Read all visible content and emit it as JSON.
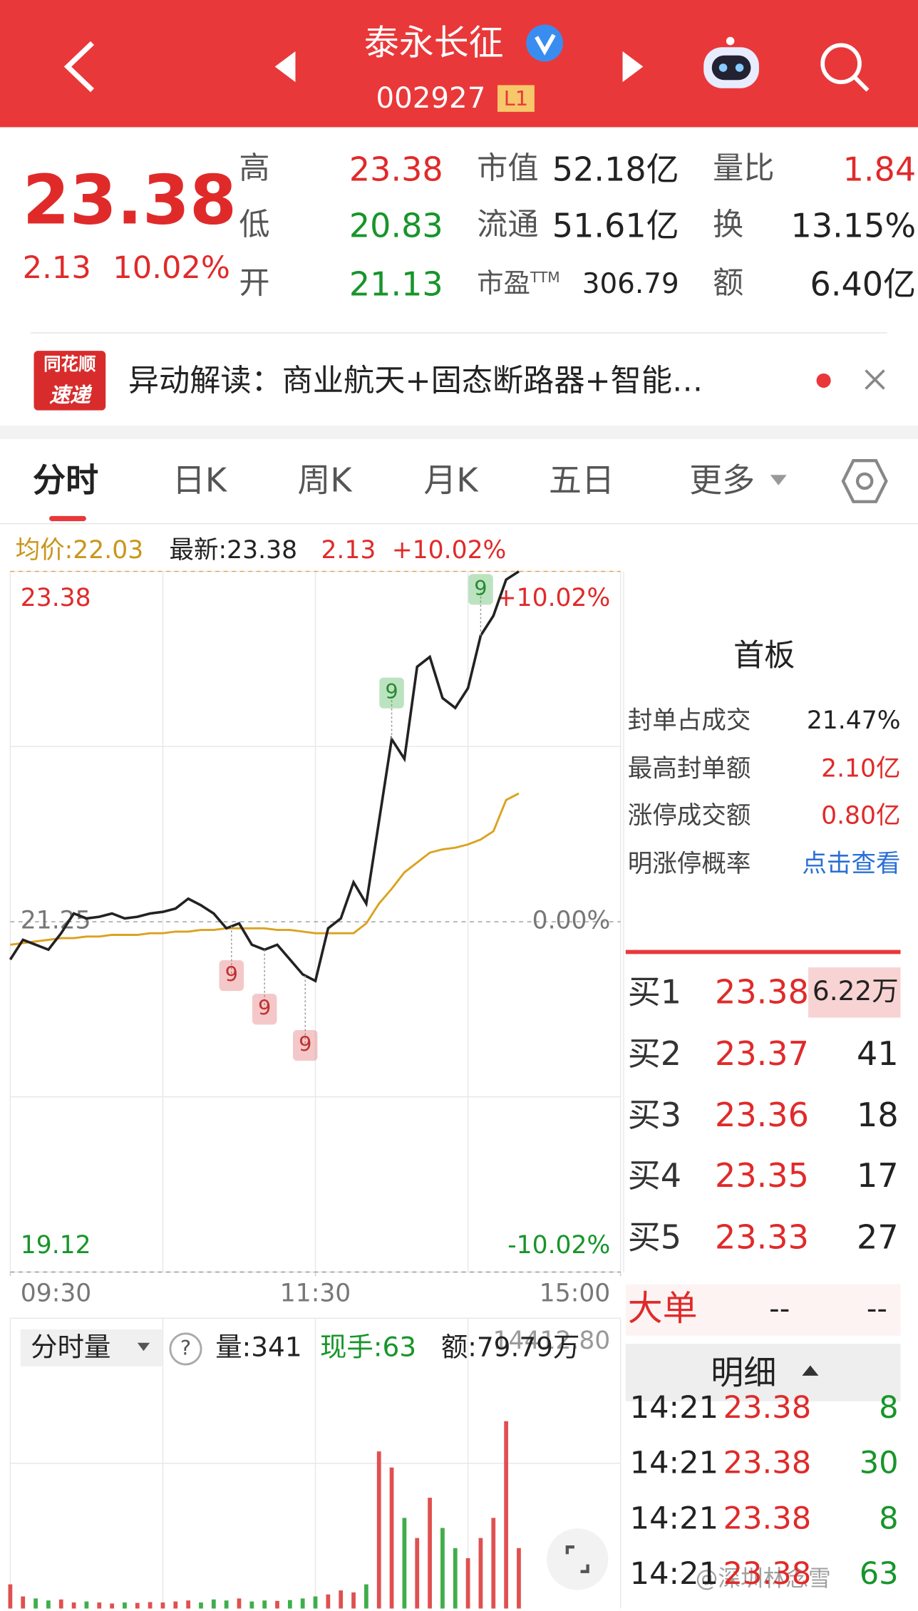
{
  "header": {
    "title": "泰永长征",
    "code": "002927",
    "level": "L1"
  },
  "quote": {
    "price": "23.38",
    "change": "2.13",
    "change_pct": "10.02%",
    "stats": [
      {
        "label": "高",
        "value": "23.38"
      },
      {
        "label": "低",
        "value": "20.83"
      },
      {
        "label": "开",
        "value": "21.13"
      },
      {
        "label": "市值",
        "value": "52.18亿"
      },
      {
        "label": "流通",
        "value": "51.61亿"
      },
      {
        "label": "市盈",
        "label_sup": "TTM",
        "value": "306.79"
      },
      {
        "label": "量比",
        "value": "1.84"
      },
      {
        "label": "换",
        "value": "13.15%"
      },
      {
        "label": "额",
        "value": "6.40亿"
      }
    ]
  },
  "news": {
    "source": [
      "同花顺",
      "速递"
    ],
    "text": "异动解读：商业航天+固态断路器+智能…"
  },
  "tabs": [
    "分时",
    "日K",
    "周K",
    "月K",
    "五日",
    "更多"
  ],
  "summary": {
    "avg": "均价:22.03",
    "latest": "最新:23.38",
    "change": "2.13",
    "change_pct": "+10.02%"
  },
  "chart_data": {
    "type": "line",
    "x": [
      0,
      5,
      10,
      15,
      20,
      25,
      30,
      35,
      40,
      45,
      50,
      55,
      60,
      65,
      70,
      75,
      80,
      85,
      90,
      95,
      100,
      105,
      110,
      115,
      120,
      125,
      130,
      135,
      140,
      145,
      150,
      155,
      160,
      165,
      170,
      175,
      180,
      185,
      190,
      195,
      200
    ],
    "series": [
      {
        "color": "#222222",
        "values": [
          21.02,
          21.14,
          21.11,
          21.08,
          21.18,
          21.3,
          21.27,
          21.28,
          21.3,
          21.27,
          21.28,
          21.3,
          21.31,
          21.33,
          21.39,
          21.35,
          21.3,
          21.21,
          21.24,
          21.11,
          21.08,
          21.11,
          21.02,
          20.93,
          20.89,
          21.21,
          21.27,
          21.49,
          21.36,
          21.86,
          22.36,
          22.24,
          22.8,
          22.86,
          22.61,
          22.55,
          22.67,
          22.99,
          23.11,
          23.33,
          23.38
        ]
      },
      {
        "color": "#dba21e",
        "values": [
          21.11,
          21.12,
          21.13,
          21.14,
          21.15,
          21.15,
          21.16,
          21.16,
          21.17,
          21.17,
          21.17,
          21.18,
          21.18,
          21.19,
          21.19,
          21.2,
          21.2,
          21.21,
          21.21,
          21.21,
          21.21,
          21.2,
          21.2,
          21.19,
          21.18,
          21.18,
          21.18,
          21.18,
          21.24,
          21.36,
          21.45,
          21.55,
          21.61,
          21.67,
          21.69,
          21.7,
          21.72,
          21.75,
          21.8,
          21.99,
          22.03
        ]
      }
    ],
    "xlim": [
      0,
      240
    ],
    "xticks": [
      {
        "value": 0,
        "label": "09:30"
      },
      {
        "value": 120,
        "label": "11:30"
      },
      {
        "value": 240,
        "label": "15:00"
      }
    ],
    "ylim": [
      19.12,
      23.38
    ],
    "yticks": [
      19.12,
      21.25,
      23.38
    ],
    "pct_labels": [
      "-10.02%",
      "0.00%",
      "+10.02%"
    ],
    "signals": [
      {
        "x": 87,
        "label": "9",
        "color": "#e06060"
      },
      {
        "x": 100,
        "label": "9",
        "color": "#e06060"
      },
      {
        "x": 116,
        "label": "9",
        "color": "#e06060"
      },
      {
        "x": 150,
        "label": "9",
        "color": "#3fae4a"
      },
      {
        "x": 185,
        "label": "9",
        "color": "#3fae4a"
      }
    ],
    "volume": {
      "top_label": "14412.80",
      "ylim": [
        0,
        14412.8
      ],
      "values": [
        1200,
        600,
        500,
        400,
        450,
        300,
        350,
        300,
        250,
        300,
        280,
        320,
        300,
        350,
        400,
        300,
        450,
        400,
        500,
        350,
        400,
        380,
        420,
        500,
        600,
        700,
        900,
        800,
        1200,
        7800,
        7000,
        4500,
        3500,
        5500,
        4000,
        3000,
        2500,
        3500,
        4500,
        9300,
        3000
      ]
    }
  },
  "volume_header": {
    "selector": "分时量",
    "help": "?",
    "volume": "量:341",
    "current": "现手:63",
    "amount": "额:79.79万"
  },
  "limit_panel": {
    "title": "首板",
    "rows": [
      {
        "label": "封单占成交",
        "value": "21.47%"
      },
      {
        "label": "最高封单额",
        "value": "2.10亿"
      },
      {
        "label": "涨停成交额",
        "value": "0.80亿"
      },
      {
        "label": "明涨停概率",
        "value": "点击查看"
      }
    ]
  },
  "order_book": [
    {
      "label": "买1",
      "price": "23.38",
      "volume": "6.22万"
    },
    {
      "label": "买2",
      "price": "23.37",
      "volume": "41"
    },
    {
      "label": "买3",
      "price": "23.36",
      "volume": "18"
    },
    {
      "label": "买4",
      "price": "23.35",
      "volume": "17"
    },
    {
      "label": "买5",
      "price": "23.33",
      "volume": "27"
    }
  ],
  "big_orders": {
    "label": "大单",
    "values": [
      "--",
      "--"
    ]
  },
  "detail": {
    "label": "明细",
    "trades": [
      {
        "time": "14:21",
        "price": "23.38",
        "volume": "8"
      },
      {
        "time": "14:21",
        "price": "23.38",
        "volume": "30"
      },
      {
        "time": "14:21",
        "price": "23.38",
        "volume": "8"
      },
      {
        "time": "14:21",
        "price": "23.38",
        "volume": "63"
      }
    ]
  },
  "watermark": "@深圳林念雪"
}
